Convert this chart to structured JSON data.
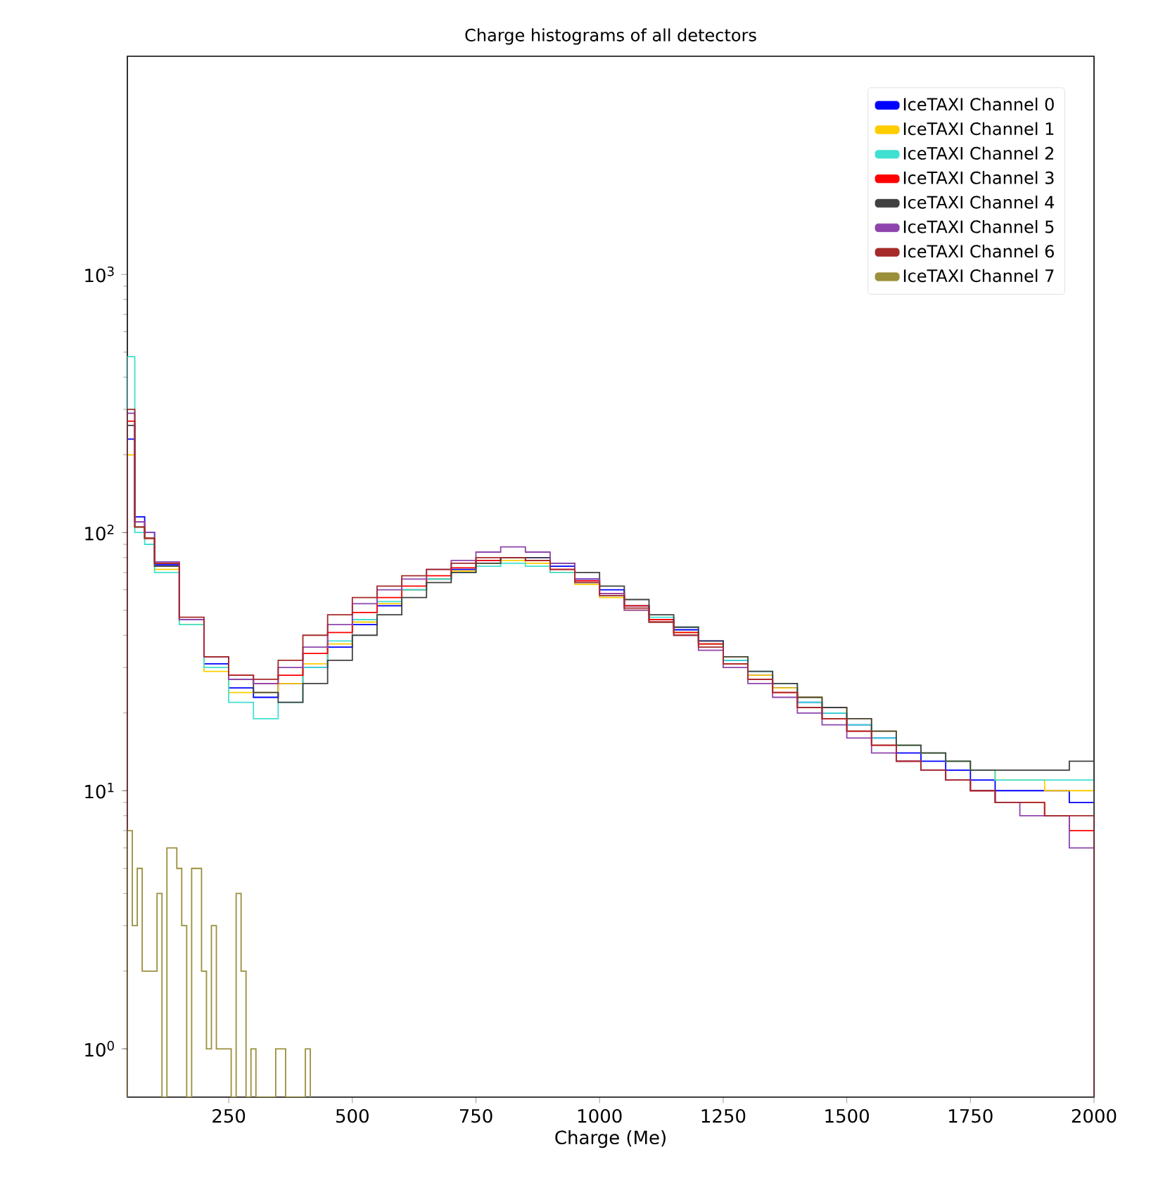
{
  "chart_data": {
    "type": "histogram",
    "title": "Charge histograms of all detectors",
    "xlabel": "Charge (Me)",
    "bins": [
      45,
      60,
      80,
      100,
      150,
      200,
      250,
      300,
      350,
      400,
      450,
      500,
      550,
      600,
      650,
      700,
      750,
      800,
      850,
      900,
      950,
      1000,
      1050,
      1100,
      1150,
      1200,
      1250,
      1300,
      1350,
      1400,
      1450,
      1500,
      1550,
      1600,
      1650,
      1700,
      1750,
      1800,
      1850,
      1900,
      1950,
      2000
    ],
    "series": [
      {
        "name": "IceTAXI Channel 0",
        "color": "#0000ff",
        "values": [
          230,
          115,
          100,
          75,
          46,
          31,
          25,
          23,
          26,
          30,
          36,
          44,
          52,
          60,
          66,
          72,
          78,
          80,
          80,
          74,
          66,
          60,
          52,
          46,
          42,
          38,
          32,
          28,
          25,
          22,
          20,
          18,
          16,
          14,
          13,
          12,
          11,
          10,
          10,
          10,
          9
        ]
      },
      {
        "name": "IceTAXI Channel 1",
        "color": "#ffcc00",
        "values": [
          200,
          105,
          95,
          72,
          44,
          29,
          24,
          24,
          26,
          31,
          37,
          45,
          53,
          60,
          66,
          71,
          76,
          78,
          76,
          70,
          63,
          56,
          50,
          45,
          41,
          37,
          33,
          28,
          25,
          23,
          21,
          19,
          17,
          15,
          14,
          13,
          12,
          11,
          11,
          10,
          10
        ]
      },
      {
        "name": "IceTAXI Channel 2",
        "color": "#40e0d0",
        "values": [
          480,
          100,
          90,
          70,
          44,
          30,
          22,
          19,
          22,
          30,
          38,
          46,
          54,
          60,
          66,
          70,
          74,
          76,
          74,
          70,
          64,
          57,
          52,
          47,
          43,
          37,
          32,
          29,
          26,
          22,
          20,
          18,
          16,
          15,
          14,
          13,
          12,
          11,
          11,
          11,
          11
        ]
      },
      {
        "name": "IceTAXI Channel 3",
        "color": "#ff0000",
        "values": [
          270,
          110,
          95,
          76,
          46,
          33,
          28,
          26,
          28,
          34,
          41,
          49,
          56,
          62,
          68,
          73,
          78,
          80,
          78,
          72,
          65,
          58,
          52,
          46,
          41,
          37,
          31,
          27,
          24,
          21,
          19,
          17,
          15,
          13,
          12,
          11,
          10,
          9,
          9,
          8,
          7
        ]
      },
      {
        "name": "IceTAXI Channel 4",
        "color": "#404040",
        "values": [
          260,
          105,
          95,
          74,
          46,
          33,
          27,
          24,
          22,
          26,
          32,
          40,
          48,
          56,
          64,
          70,
          76,
          80,
          80,
          76,
          70,
          62,
          55,
          48,
          43,
          38,
          33,
          29,
          26,
          23,
          21,
          19,
          17,
          15,
          14,
          13,
          12,
          12,
          12,
          12,
          13
        ]
      },
      {
        "name": "IceTAXI Channel 5",
        "color": "#8e44ad",
        "values": [
          290,
          110,
          100,
          77,
          46,
          33,
          27,
          26,
          30,
          36,
          44,
          53,
          60,
          66,
          72,
          78,
          84,
          88,
          84,
          76,
          66,
          58,
          50,
          45,
          40,
          35,
          30,
          26,
          23,
          20,
          18,
          16,
          14,
          13,
          12,
          11,
          10,
          9,
          8,
          8,
          6
        ]
      },
      {
        "name": "IceTAXI Channel 6",
        "color": "#a52a2a",
        "values": [
          300,
          105,
          95,
          76,
          47,
          33,
          28,
          27,
          32,
          40,
          48,
          56,
          62,
          68,
          72,
          76,
          80,
          80,
          78,
          72,
          64,
          57,
          51,
          45,
          40,
          36,
          31,
          27,
          24,
          21,
          19,
          17,
          15,
          13,
          12,
          11,
          10,
          9,
          9,
          8,
          8
        ]
      },
      {
        "name": "IceTAXI Channel 7",
        "color": "#9a8f3b",
        "bins": [
          45,
          55,
          65,
          75,
          85,
          95,
          105,
          115,
          125,
          135,
          145,
          155,
          165,
          175,
          185,
          195,
          205,
          215,
          225,
          235,
          245,
          255,
          265,
          275,
          285,
          295,
          305,
          315,
          325,
          335,
          345,
          355,
          365,
          375,
          385,
          395,
          405,
          415
        ],
        "values": [
          7,
          3,
          5,
          2,
          2,
          2,
          4,
          null,
          6,
          6,
          5,
          3,
          null,
          5,
          5,
          2,
          1,
          3,
          1,
          1,
          1,
          null,
          4,
          2,
          null,
          1,
          null,
          null,
          null,
          null,
          1,
          1,
          null,
          null,
          null,
          null,
          1
        ]
      }
    ],
    "xlim": [
      45,
      2000
    ],
    "ylim": [
      0.65,
      7000
    ],
    "xticks": [
      250,
      500,
      750,
      1000,
      1250,
      1500,
      1750,
      2000
    ],
    "yticks": [
      {
        "value": 1,
        "label": "10$^{0}$"
      },
      {
        "value": 10,
        "label": "10$^{1}$"
      },
      {
        "value": 100,
        "label": "10$^{2}$"
      },
      {
        "value": 1000,
        "label": "10$^{3}$"
      }
    ],
    "log": "y",
    "legend": "top right"
  }
}
